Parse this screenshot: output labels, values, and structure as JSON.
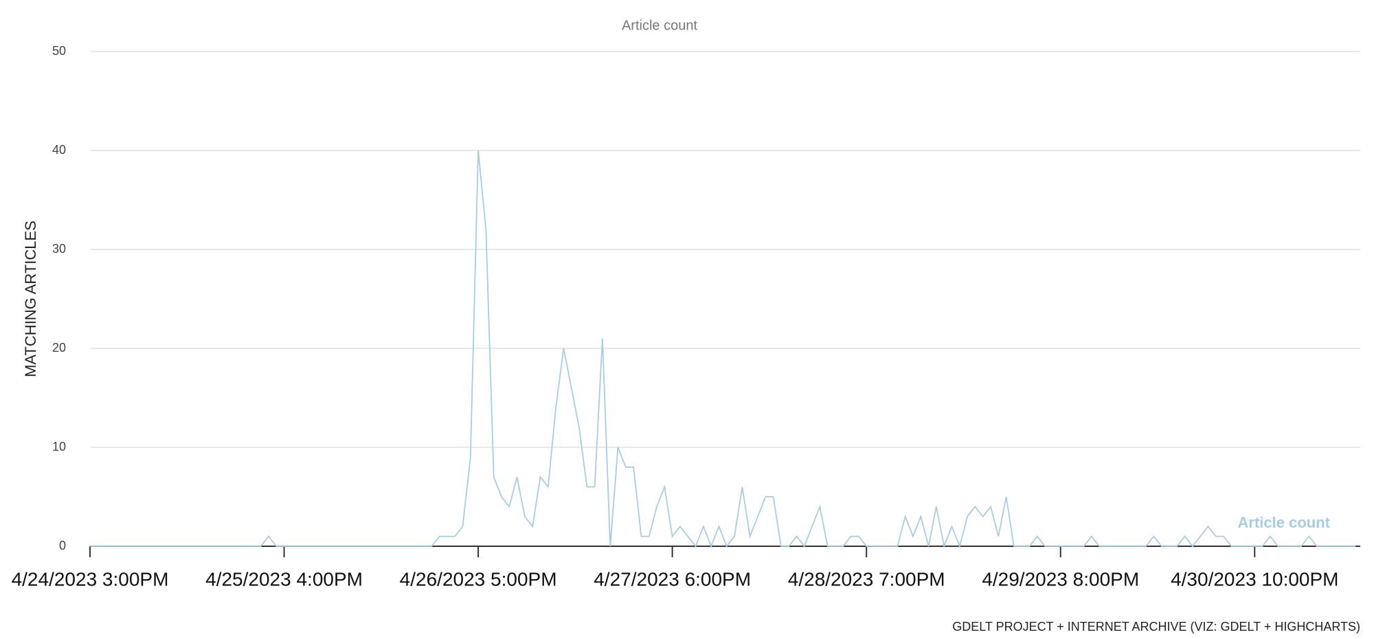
{
  "chart_data": {
    "type": "line",
    "title": "Article count",
    "y_label": "MATCHING ARTICLES",
    "credit": "GDELT PROJECT + INTERNET ARCHIVE (VIZ: GDELT + HIGHCHARTS)",
    "categories": [
      "4/24/2023 3:00PM",
      null,
      null,
      null,
      null,
      null,
      null,
      null,
      null,
      null,
      null,
      null,
      null,
      null,
      null,
      null,
      null,
      null,
      null,
      null,
      null,
      null,
      null,
      null,
      null,
      "4/25/2023 4:00PM",
      null,
      null,
      null,
      null,
      null,
      null,
      null,
      null,
      null,
      null,
      null,
      null,
      null,
      null,
      null,
      null,
      null,
      null,
      null,
      null,
      null,
      null,
      null,
      null,
      "4/26/2023 5:00PM",
      null,
      null,
      null,
      null,
      null,
      null,
      null,
      null,
      null,
      null,
      null,
      null,
      null,
      null,
      null,
      null,
      null,
      null,
      null,
      null,
      null,
      null,
      null,
      null,
      "4/27/2023 6:00PM",
      null,
      null,
      null,
      null,
      null,
      null,
      null,
      null,
      null,
      null,
      null,
      null,
      null,
      null,
      null,
      null,
      null,
      null,
      null,
      null,
      null,
      null,
      null,
      null,
      "4/28/2023 7:00PM",
      null,
      null,
      null,
      null,
      null,
      null,
      null,
      null,
      null,
      null,
      null,
      null,
      null,
      null,
      null,
      null,
      null,
      null,
      null,
      null,
      null,
      null,
      null,
      null,
      "4/29/2023 8:00PM",
      null,
      null,
      null,
      null,
      null,
      null,
      null,
      null,
      null,
      null,
      null,
      null,
      null,
      null,
      null,
      null,
      null,
      null,
      null,
      null,
      null,
      null,
      null,
      null,
      "4/30/2023 10:00PM",
      null,
      null,
      null,
      null,
      null,
      null,
      null,
      null,
      null,
      null,
      null,
      null,
      null
    ],
    "series": [
      {
        "name": "Article count",
        "color": "#a6cee3",
        "values": [
          0,
          0,
          0,
          0,
          0,
          0,
          0,
          0,
          0,
          0,
          0,
          0,
          0,
          0,
          0,
          0,
          0,
          0,
          0,
          0,
          0,
          0,
          0,
          1,
          0,
          0,
          0,
          0,
          0,
          0,
          0,
          0,
          0,
          0,
          0,
          0,
          0,
          0,
          0,
          0,
          0,
          0,
          0,
          0,
          0,
          1,
          1,
          1,
          2,
          9,
          40,
          32,
          7,
          5,
          4,
          7,
          3,
          2,
          7,
          6,
          14,
          20,
          16,
          12,
          6,
          6,
          21,
          0,
          10,
          8,
          8,
          1,
          1,
          4,
          6,
          1,
          2,
          1,
          0,
          2,
          0,
          2,
          0,
          1,
          6,
          1,
          3,
          5,
          5,
          0,
          0,
          1,
          0,
          2,
          4,
          0,
          0,
          0,
          1,
          1,
          0,
          0,
          0,
          0,
          0,
          3,
          1,
          3,
          0,
          4,
          0,
          2,
          0,
          3,
          4,
          3,
          4,
          1,
          5,
          0,
          0,
          0,
          1,
          0,
          0,
          0,
          0,
          0,
          0,
          1,
          0,
          0,
          0,
          0,
          0,
          0,
          0,
          1,
          0,
          0,
          0,
          1,
          0,
          1,
          2,
          1,
          1,
          0,
          0,
          0,
          0,
          0,
          1,
          0,
          0,
          0,
          0,
          1,
          0,
          0,
          0,
          0,
          0,
          0
        ]
      }
    ],
    "ylim": [
      0,
      50
    ],
    "yticks": [
      0,
      10,
      20,
      30,
      40,
      50
    ],
    "grid": true,
    "legend": "bottom-right"
  }
}
